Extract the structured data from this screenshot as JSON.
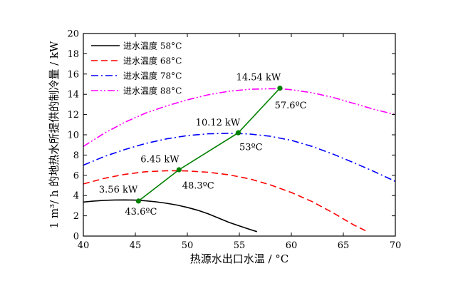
{
  "chart_data": {
    "type": "line",
    "xlabel": "热源水出口水温 / °C",
    "ylabel": "1 m³/ h 的地热水所提供的制冷量 / kW",
    "xlim": [
      40,
      70
    ],
    "ylim": [
      0,
      20
    ],
    "xticks": [
      "40",
      "45",
      "50",
      "55",
      "60",
      "65",
      "70"
    ],
    "yticks": [
      "0",
      "2",
      "4",
      "6",
      "8",
      "10",
      "12",
      "14",
      "16",
      "18",
      "20"
    ],
    "legend_position": "top-left",
    "grid": false,
    "series": [
      {
        "name": "进水温度 58°C",
        "color": "#000000",
        "style": "solid",
        "x": [
          40,
          41,
          42,
          43,
          44,
          45,
          46,
          47,
          48,
          49,
          50,
          51,
          52,
          53,
          54,
          55,
          56,
          56.7
        ],
        "y": [
          3.36,
          3.46,
          3.53,
          3.56,
          3.57,
          3.55,
          3.48,
          3.38,
          3.24,
          3.06,
          2.83,
          2.55,
          2.2,
          1.78,
          1.36,
          1.0,
          0.66,
          0.44
        ]
      },
      {
        "name": "进水温度 68°C",
        "color": "#ff0000",
        "style": "dash",
        "x": [
          40,
          42,
          44,
          46,
          48,
          49,
          50,
          52,
          54,
          56,
          58,
          60,
          62,
          64,
          66,
          67.2
        ],
        "y": [
          5.15,
          5.7,
          6.1,
          6.35,
          6.45,
          6.45,
          6.43,
          6.3,
          6.05,
          5.65,
          5.05,
          4.3,
          3.4,
          2.3,
          1.1,
          0.5
        ]
      },
      {
        "name": "进水温度 78°C",
        "color": "#0000ff",
        "style": "dashdot",
        "x": [
          40,
          42,
          44,
          46,
          48,
          50,
          52,
          54,
          55,
          56,
          58,
          60,
          62,
          64,
          66,
          68,
          70
        ],
        "y": [
          7.0,
          7.85,
          8.55,
          9.15,
          9.6,
          9.92,
          10.1,
          10.15,
          10.12,
          10.08,
          9.85,
          9.45,
          8.85,
          8.1,
          7.25,
          6.35,
          5.4
        ]
      },
      {
        "name": "进水温度 88°C",
        "color": "#ff00ff",
        "style": "dashdotdot",
        "x": [
          40,
          42,
          44,
          46,
          48,
          50,
          52,
          54,
          56,
          58,
          59,
          60,
          62,
          64,
          66,
          68,
          70
        ],
        "y": [
          8.85,
          10.15,
          11.25,
          12.15,
          12.85,
          13.45,
          13.95,
          14.3,
          14.5,
          14.55,
          14.54,
          14.45,
          14.15,
          13.7,
          13.1,
          12.5,
          12.0
        ]
      },
      {
        "name": "",
        "color": "#008000",
        "style": "solid-markers",
        "x": [
          45.3,
          49.2,
          54.9,
          58.9
        ],
        "y": [
          3.46,
          6.55,
          10.2,
          14.6
        ]
      }
    ],
    "annotations": [
      {
        "text": "3.56 kW",
        "x": 41.5,
        "y": 4.3
      },
      {
        "text": "43.6ºC",
        "x": 44.0,
        "y": 2.1
      },
      {
        "text": "6.45 kW",
        "x": 45.5,
        "y": 7.3
      },
      {
        "text": "48.3ºC",
        "x": 49.5,
        "y": 4.7
      },
      {
        "text": "10.12 kW",
        "x": 50.8,
        "y": 10.9
      },
      {
        "text": "53ºC",
        "x": 55.0,
        "y": 8.5
      },
      {
        "text": "14.54 kW",
        "x": 54.7,
        "y": 15.4
      },
      {
        "text": "57.6ºC",
        "x": 58.4,
        "y": 12.6
      }
    ]
  }
}
